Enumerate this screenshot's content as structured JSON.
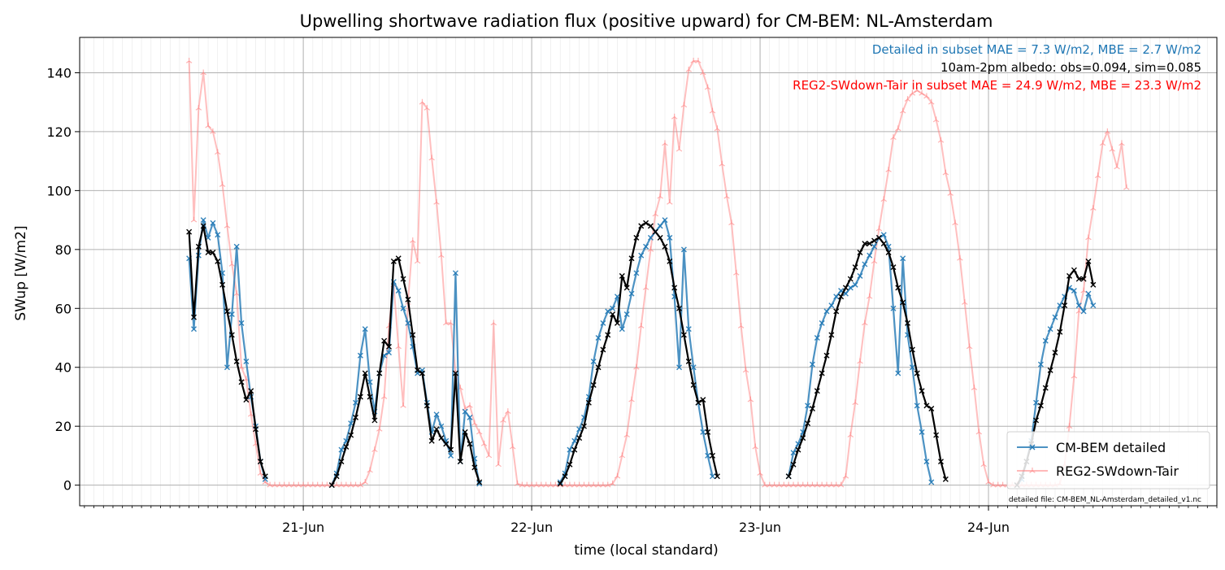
{
  "chart_data": {
    "type": "line",
    "title": "Upwelling shortwave radiation flux (positive upward) for CM-BEM: NL-Amsterdam",
    "xlabel": "time (local standard)",
    "ylabel": "SWup [W/m2]",
    "x_unit": "hour",
    "x_start": "2023-06-20T13:00",
    "xlim": [
      -12.5,
      107
    ],
    "ylim": [
      -7,
      152
    ],
    "yticks": [
      0,
      20,
      40,
      60,
      80,
      100,
      120,
      140
    ],
    "xticks": [
      {
        "label": "21-Jun",
        "x": 11
      },
      {
        "label": "22-Jun",
        "x": 35
      },
      {
        "label": "23-Jun",
        "x": 59
      },
      {
        "label": "24-Jun",
        "x": 83
      }
    ],
    "grid": true,
    "legend": {
      "placement": "lower-right"
    },
    "annotations": [
      {
        "text": "Detailed in subset MAE = 7.3 W/m2, MBE = 2.7 W/m2",
        "color": "#1f77b4"
      },
      {
        "text": "10am-2pm albedo: obs=0.094, sim=0.085",
        "color": "#000000"
      },
      {
        "text": "REG2-SWdown-Tair in subset MAE = 24.9 W/m2, MBE = 23.3 W/m2",
        "color": "#ff0000"
      }
    ],
    "footnote": "detailed file: CM-BEM_NL-Amsterdam_detailed_v1.nc",
    "series": [
      {
        "name": "REG2-SWdown-Tair",
        "color": "#ff7f7f",
        "segments": [
          {
            "x0": -1,
            "step": 0.5,
            "values": [
              144,
              90,
              128,
              140,
              122,
              120,
              113,
              102,
              88,
              75,
              65,
              40,
              36,
              24,
              14,
              4,
              1,
              0,
              0,
              0,
              0,
              0,
              0,
              0,
              0,
              0,
              0,
              0,
              0,
              0,
              0,
              0,
              0,
              0,
              0,
              0,
              0,
              1,
              5,
              12,
              19,
              30,
              54,
              68,
              47,
              27,
              62,
              83,
              76,
              130,
              128,
              111,
              96,
              78,
              55,
              55,
              38,
              33,
              26,
              27,
              21,
              18,
              14,
              10,
              55,
              7,
              22,
              25,
              13,
              0.5,
              0,
              0,
              0,
              0,
              0,
              0,
              0,
              0,
              0,
              0,
              0,
              0,
              0,
              0,
              0,
              0,
              0,
              0,
              0,
              0.5,
              3,
              10,
              17,
              29,
              40,
              54,
              67,
              80,
              92,
              98,
              116,
              96,
              125,
              114,
              129,
              141,
              144,
              144,
              140,
              135,
              127,
              121,
              109,
              98,
              89,
              72,
              54,
              39,
              29,
              13,
              4,
              0,
              0,
              0,
              0,
              0,
              0,
              0,
              0,
              0,
              0,
              0,
              0,
              0,
              0,
              0,
              0,
              0,
              3,
              17,
              28,
              42,
              55,
              64,
              76,
              87,
              97,
              107,
              118,
              121,
              127,
              131,
              133,
              134,
              133,
              132,
              130,
              124,
              117,
              106,
              99,
              89,
              77,
              62,
              47,
              33,
              18,
              7,
              1,
              0,
              0,
              0,
              0,
              0,
              0,
              0,
              0,
              0,
              0,
              0,
              0,
              0,
              0,
              0.5,
              7,
              20,
              37,
              59,
              66,
              84,
              94,
              105,
              116,
              120,
              114,
              108,
              116,
              101
            ]
          }
        ]
      },
      {
        "name": "CM-BEM detailed",
        "color": "#1f77b4",
        "segments": [
          {
            "x0": -1,
            "step": 0.5,
            "values": [
              77,
              53,
              78,
              90,
              84,
              89,
              85,
              72,
              40,
              58,
              81,
              55,
              42,
              30,
              20,
              8,
              2
            ]
          },
          {
            "x0": 14,
            "step": 0.5,
            "values": [
              0,
              4,
              12,
              15,
              21,
              28,
              44,
              53,
              35,
              25,
              38,
              44,
              45,
              69,
              66,
              60,
              55,
              47,
              38,
              39,
              28,
              18,
              24,
              20,
              15,
              10,
              72,
              8,
              25,
              23,
              9,
              0.5
            ]
          },
          {
            "x0": 38,
            "step": 0.5,
            "values": [
              1,
              4,
              12,
              15,
              19,
              23,
              30,
              42,
              50,
              55,
              59,
              60,
              64,
              53,
              58,
              65,
              72,
              78,
              81,
              84,
              86,
              88,
              90,
              84,
              64,
              40,
              80,
              53,
              40,
              28,
              18,
              10,
              3
            ]
          },
          {
            "x0": 62,
            "step": 0.5,
            "values": [
              3,
              11,
              14,
              18,
              27,
              41,
              50,
              55,
              59,
              61,
              64,
              66,
              65,
              67,
              68,
              71,
              75,
              78,
              81,
              84,
              85,
              81,
              60,
              38,
              77,
              51,
              40,
              27,
              18,
              8,
              1
            ]
          },
          {
            "x0": 86,
            "step": 0.5,
            "values": [
              0,
              2,
              8,
              15,
              28,
              41,
              49,
              53,
              57,
              61,
              64,
              67,
              66,
              61,
              59,
              65,
              61
            ]
          }
        ]
      },
      {
        "name": "",
        "color": "#000000",
        "segments": [
          {
            "x0": -1,
            "step": 0.5,
            "values": [
              86,
              57,
              81,
              88,
              79,
              79,
              76,
              68,
              59,
              51,
              42,
              35,
              29,
              32,
              19,
              8,
              3
            ]
          },
          {
            "x0": 14,
            "step": 0.5,
            "values": [
              0,
              3,
              8,
              13,
              17,
              23,
              30,
              38,
              30,
              22,
              38,
              49,
              47,
              76,
              77,
              70,
              63,
              51,
              39,
              38,
              27,
              15,
              19,
              16,
              14,
              12,
              38,
              8,
              18,
              14,
              6,
              1
            ]
          },
          {
            "x0": 38,
            "step": 0.5,
            "values": [
              0.5,
              3,
              7,
              12,
              16,
              20,
              28,
              34,
              40,
              46,
              51,
              58,
              55,
              71,
              67,
              77,
              84,
              88,
              89,
              88,
              86,
              84,
              81,
              76,
              67,
              60,
              51,
              42,
              34,
              28,
              29,
              18,
              10,
              3
            ]
          },
          {
            "x0": 62,
            "step": 0.5,
            "values": [
              3,
              7,
              12,
              16,
              21,
              26,
              32,
              38,
              44,
              51,
              59,
              64,
              67,
              70,
              74,
              79,
              82,
              82,
              83,
              84,
              82,
              79,
              74,
              67,
              62,
              55,
              46,
              38,
              32,
              27,
              26,
              17,
              8,
              2
            ]
          },
          {
            "x0": 86,
            "step": 0.5,
            "values": [
              0,
              3,
              8,
              14,
              22,
              27,
              33,
              39,
              45,
              52,
              61,
              71,
              73,
              70,
              70,
              76,
              68
            ]
          }
        ]
      }
    ]
  }
}
